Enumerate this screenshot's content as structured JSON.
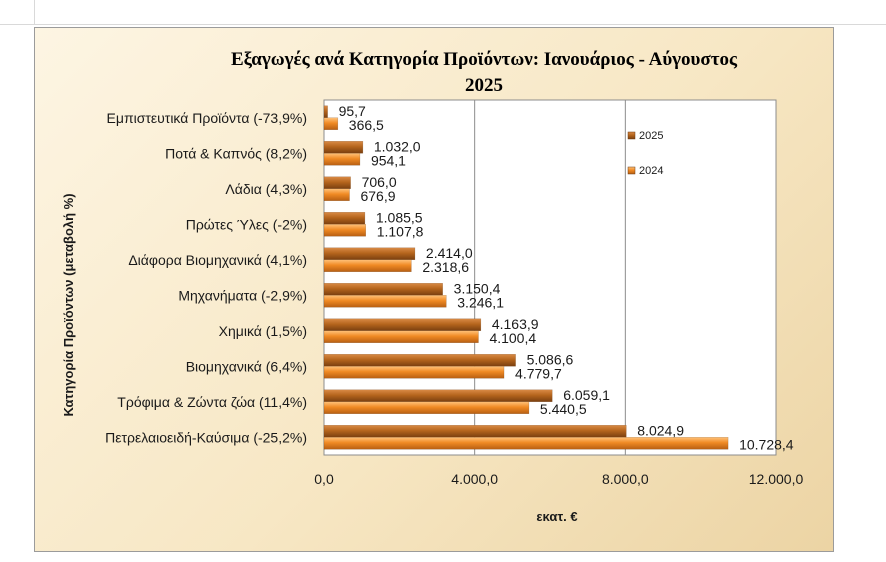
{
  "chart_data": {
    "type": "bar",
    "orientation": "horizontal",
    "title_line1": "Εξαγωγές ανά Κατηγορία Προϊόντων:  Ιανουάριος - Αύγουστος",
    "title_line2": "2025",
    "xlabel": "εκατ. €",
    "ylabel": "Κατηγορία Προϊόντων (μεταβολή %)",
    "xlim": [
      0,
      12000
    ],
    "xticks": [
      0,
      4000,
      8000,
      12000
    ],
    "xtick_labels": [
      "0,0",
      "4.000,0",
      "8.000,0",
      "12.000,0"
    ],
    "grid": "vertical",
    "legend_position": "right",
    "categories": [
      "Εμπιστευτικά Προϊόντα (-73,9%)",
      "Ποτά & Καπνός (8,2%)",
      "Λάδια (4,3%)",
      "Πρώτες Ύλες (-2%)",
      "Διάφορα Βιομηχανικά (4,1%)",
      "Μηχανήματα (-2,9%)",
      "Χημικά (1,5%)",
      "Βιομηχανικά (6,4%)",
      "Τρόφιμα & Ζώντα ζώα (11,4%)",
      "Πετρελαιοειδή-Καύσιμα (-25,2%)"
    ],
    "series": [
      {
        "name": "2025",
        "color": "#b5651d",
        "values": [
          95.7,
          1032.0,
          706.0,
          1085.5,
          2414.0,
          3150.4,
          4163.9,
          5086.6,
          6059.1,
          8024.9
        ],
        "labels": [
          "95,7",
          "1.032,0",
          "706,0",
          "1.085,5",
          "2.414,0",
          "3.150,4",
          "4.163,9",
          "5.086,6",
          "6.059,1",
          "8.024,9"
        ]
      },
      {
        "name": "2024",
        "color": "#f08a24",
        "values": [
          366.5,
          954.1,
          676.9,
          1107.8,
          2318.6,
          3246.1,
          4100.4,
          4779.7,
          5440.5,
          10728.4
        ],
        "labels": [
          "366,5",
          "954,1",
          "676,9",
          "1.107,8",
          "2.318,6",
          "3.246,1",
          "4.100,4",
          "4.779,7",
          "5.440,5",
          "10.728,4"
        ]
      }
    ]
  }
}
